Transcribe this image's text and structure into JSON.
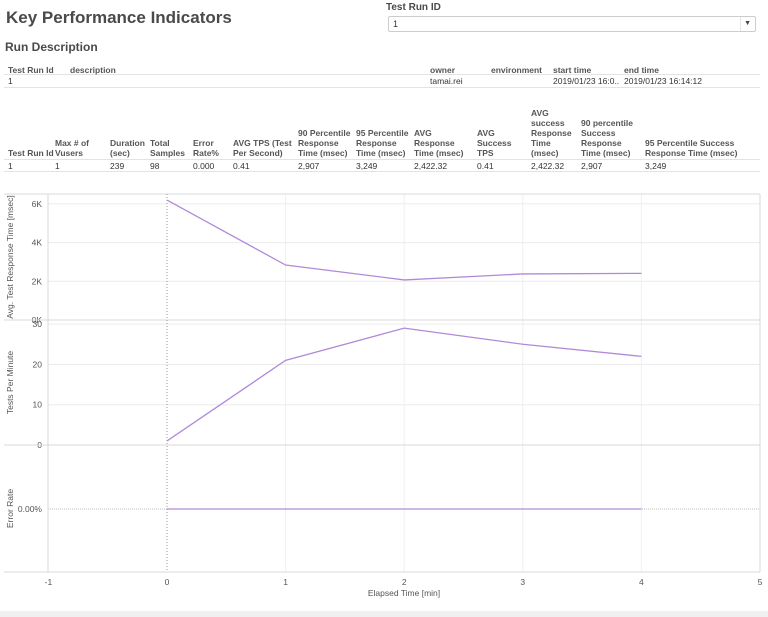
{
  "header": {
    "title": "Key Performance Indicators",
    "filter_label": "Test Run ID",
    "filter_value": "1",
    "filter_arrow": "▼"
  },
  "run_description": {
    "title": "Run Description",
    "columns": [
      "Test Run Id",
      "description",
      "owner",
      "environment",
      "start time",
      "end time"
    ],
    "row": {
      "test_run_id": "1",
      "description": "",
      "owner": "tamai.rei",
      "environment": "",
      "start_time": "2019/01/23 16:0..",
      "end_time": "2019/01/23 16:14:12"
    }
  },
  "kpi_table": {
    "columns": [
      "Test Run Id",
      "Max # of Vusers",
      "Duration (sec)",
      "Total Samples",
      "Error Rate%",
      "AVG TPS (Test Per Second)",
      "90 Percentile Response Time (msec)",
      "95 Percentile Response Time (msec)",
      "AVG Response Time (msec)",
      "AVG Success TPS",
      "AVG success Response Time (msec)",
      "90 percentile Success Response Time (msec)",
      "95 Percentile Success Response Time (msec)"
    ],
    "row": [
      "1",
      "1",
      "239",
      "98",
      "0.000",
      "0.41",
      "2,907",
      "3,249",
      "2,422.32",
      "0.41",
      "2,422.32",
      "2,907",
      "3,249"
    ]
  },
  "chart_data": {
    "type": "line",
    "title": "",
    "xlabel": "Elapsed Time [min]",
    "x_ticks": [
      "-1",
      "0",
      "1",
      "2",
      "3",
      "4",
      "5"
    ],
    "xlim": [
      -1,
      5
    ],
    "x": [
      0,
      1,
      2,
      3,
      4
    ],
    "line_color": "#b08ad8",
    "grid": true,
    "legend": null,
    "panes": [
      {
        "ylabel": "Avg. Test Response Time [msec]",
        "y_ticks": [
          "0K",
          "2K",
          "4K",
          "6K"
        ],
        "ylim": [
          0,
          6200
        ],
        "values": [
          6200,
          2840,
          2070,
          2380,
          2410
        ]
      },
      {
        "ylabel": "Tests Per Minute",
        "y_ticks": [
          "0",
          "10",
          "20",
          "30"
        ],
        "ylim": [
          0,
          30
        ],
        "values": [
          1,
          21,
          29,
          25,
          22
        ]
      },
      {
        "ylabel": "Error Rate",
        "y_ticks": [
          "0.00%"
        ],
        "values": [
          0,
          0,
          0,
          0,
          0
        ]
      }
    ]
  }
}
